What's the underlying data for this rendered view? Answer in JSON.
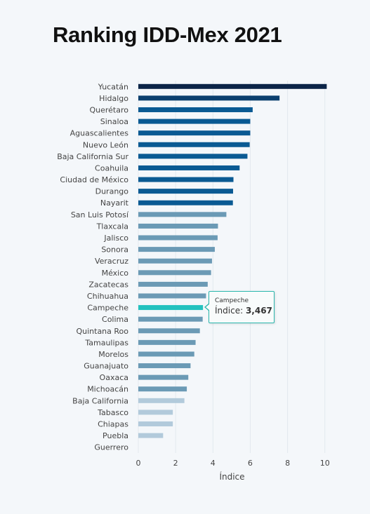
{
  "title": "Ranking IDD-Mex 2021",
  "chart_data": {
    "type": "bar",
    "orientation": "horizontal",
    "title": "Ranking IDD-Mex 2021",
    "xlabel": "Índice",
    "ylabel": "",
    "xlim": [
      0,
      10.5
    ],
    "xticks": [
      "0",
      "2",
      "4",
      "6",
      "8",
      "10"
    ],
    "grid": true,
    "categories": [
      "Yucatán",
      "Hidalgo",
      "Querétaro",
      "Sinaloa",
      "Aguascalientes",
      "Nuevo León",
      "Baja California Sur",
      "Coahuila",
      "Ciudad de México",
      "Durango",
      "Nayarit",
      "San Luis Potosí",
      "Tlaxcala",
      "Jalisco",
      "Sonora",
      "Veracruz",
      "México",
      "Zacatecas",
      "Chihuahua",
      "Campeche",
      "Colima",
      "Quintana Roo",
      "Tamaulipas",
      "Morelos",
      "Guanajuato",
      "Oaxaca",
      "Michoacán",
      "Baja California",
      "Tabasco",
      "Chiapas",
      "Puebla",
      "Guerrero"
    ],
    "values": [
      10.1,
      7.57,
      6.13,
      6.0,
      6.0,
      5.97,
      5.85,
      5.43,
      5.1,
      5.08,
      5.07,
      4.72,
      4.27,
      4.25,
      4.1,
      3.95,
      3.9,
      3.72,
      3.63,
      3.467,
      3.45,
      3.3,
      3.07,
      3.0,
      2.8,
      2.68,
      2.6,
      2.47,
      1.85,
      1.85,
      1.33,
      0
    ],
    "bar_colors": [
      "#0b2447",
      "#0b3f6e",
      "#0a5a93",
      "#0a5a93",
      "#0a5a93",
      "#0a5a93",
      "#0a5a93",
      "#0a5a93",
      "#0a5a93",
      "#0a5a93",
      "#0a5a93",
      "#6b9ab5",
      "#6b9ab5",
      "#6b9ab5",
      "#6b9ab5",
      "#6b9ab5",
      "#6b9ab5",
      "#6b9ab5",
      "#6b9ab5",
      "#23c2bf",
      "#6b9ab5",
      "#6b9ab5",
      "#6b9ab5",
      "#6b9ab5",
      "#6b9ab5",
      "#6b9ab5",
      "#6b9ab5",
      "#b2cadb",
      "#b2cadb",
      "#b2cadb",
      "#b2cadb",
      "#b2cadb"
    ],
    "highlight": "Campeche"
  },
  "tooltip": {
    "name": "Campeche",
    "label": "Índice: ",
    "value": "3,467"
  },
  "colors": {
    "background": "#f4f7fa",
    "highlight": "#23c2bf",
    "tooltip_border": "#2ab7ad"
  }
}
